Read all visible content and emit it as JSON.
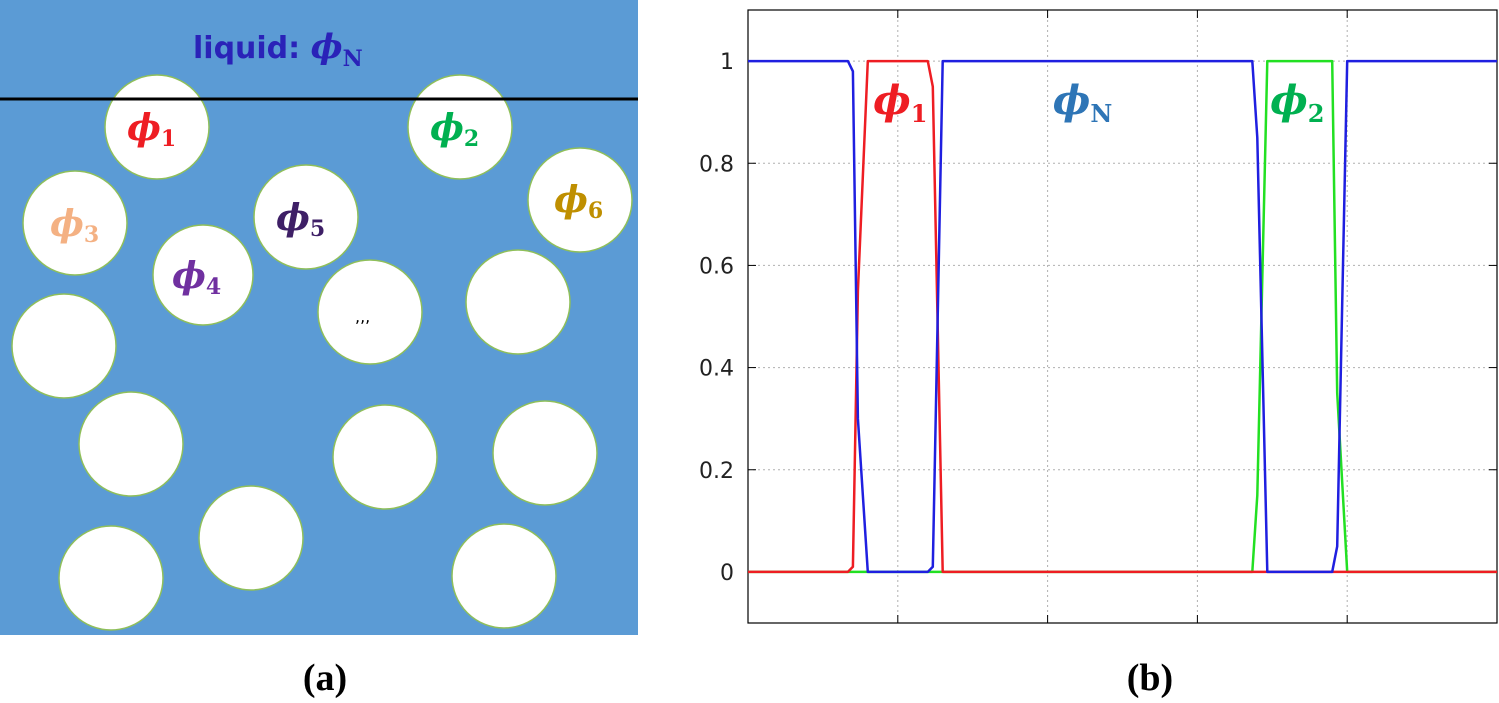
{
  "panel_a": {
    "label": "(a)",
    "liquid_text": "liquid: ",
    "liquid_phi": "ϕ",
    "liquid_sub": "N",
    "ellipsis": ",,,",
    "colors": {
      "background": "#5b9bd5",
      "particle": "#ffffff",
      "particle_edge": "#8fbf5a",
      "interface_line": "#000000"
    },
    "particles": [
      {
        "sym": "ϕ",
        "sub": "1",
        "color": "#ee1d23"
      },
      {
        "sym": "ϕ",
        "sub": "2",
        "color": "#00b050"
      },
      {
        "sym": "ϕ",
        "sub": "3",
        "color": "#f4b183"
      },
      {
        "sym": "ϕ",
        "sub": "4",
        "color": "#7030a0"
      },
      {
        "sym": "ϕ",
        "sub": "5",
        "color": "#3e1f66"
      },
      {
        "sym": "ϕ",
        "sub": "6",
        "color": "#bf8f00"
      }
    ]
  },
  "panel_b": {
    "label": "(b)",
    "chart_data": {
      "type": "line",
      "ylim": [
        -0.1,
        1.1
      ],
      "xlim": [
        0,
        150
      ],
      "yticks": [
        "1",
        "0.8",
        "0.6",
        "0.4",
        "0.2",
        "0"
      ],
      "ytick_values": [
        1,
        0.8,
        0.6,
        0.4,
        0.2,
        0
      ],
      "xgrid": [
        30,
        60,
        90,
        120
      ],
      "grid": true,
      "series": [
        {
          "name": "ϕN",
          "color": "#1f1fe0",
          "x": [
            0,
            20,
            21,
            22,
            24,
            36,
            37,
            39,
            101,
            102,
            104,
            117,
            118,
            120,
            150
          ],
          "y": [
            1,
            1,
            0.98,
            0.3,
            0,
            0,
            0.01,
            1,
            1,
            0.85,
            0,
            0,
            0.05,
            1,
            1
          ]
        },
        {
          "name": "ϕ1",
          "color": "#ee1d23",
          "x": [
            0,
            20,
            21,
            22,
            24,
            36,
            37,
            39,
            150
          ],
          "y": [
            0,
            0,
            0.01,
            0.55,
            1,
            1,
            0.95,
            0,
            0
          ]
        },
        {
          "name": "ϕ2",
          "color": "#22e022",
          "x": [
            0,
            101,
            102,
            104,
            117,
            118,
            120,
            150
          ],
          "y": [
            0,
            0,
            0.15,
            1,
            1,
            0.35,
            0,
            0
          ]
        }
      ],
      "annotations": [
        {
          "sym": "ϕ",
          "sub": "1",
          "color": "#ee1d23",
          "x": 30.5,
          "y": 0.92
        },
        {
          "sym": "ϕ",
          "sub": "N",
          "color": "#2e75b6",
          "x": 67,
          "y": 0.92
        },
        {
          "sym": "ϕ",
          "sub": "2",
          "color": "#00b050",
          "x": 110,
          "y": 0.92
        }
      ]
    }
  }
}
